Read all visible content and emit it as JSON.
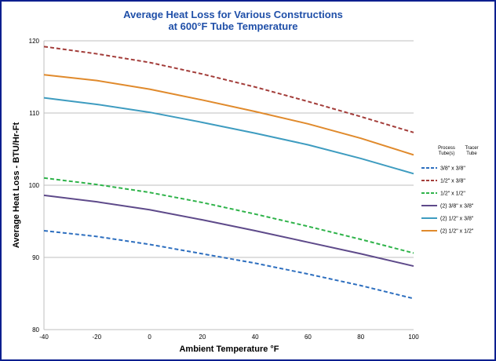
{
  "chart_data": {
    "type": "line",
    "title_line1": "Average Heat Loss for Various Constructions",
    "title_line2": "at 600°F Tube Temperature",
    "xlabel": "Ambient Temperature °F",
    "ylabel": "Average Heat Loss - BTU/Hr-Ft",
    "xlim": [
      -40,
      100
    ],
    "ylim": [
      80,
      120
    ],
    "x_ticks": [
      -40,
      -20,
      0,
      20,
      40,
      60,
      80,
      100
    ],
    "y_ticks": [
      80,
      90,
      100,
      110,
      120
    ],
    "grid": "horizontal",
    "legend_position": "right",
    "legend_header_process": "Process Tube(s)",
    "legend_header_tracer": "Tracer Tube",
    "x": [
      -40,
      -20,
      0,
      20,
      40,
      60,
      80,
      100
    ],
    "series": [
      {
        "name": "3/8\" x 3/8\"",
        "color": "#2e6fbf",
        "dash": true,
        "values": [
          93.7,
          92.9,
          91.8,
          90.5,
          89.2,
          87.7,
          86.1,
          84.3
        ]
      },
      {
        "name": "1/2\" x 3/8\"",
        "color": "#a33d3a",
        "dash": true,
        "values": [
          119.2,
          118.2,
          117.0,
          115.4,
          113.6,
          111.6,
          109.5,
          107.3
        ]
      },
      {
        "name": "1/2\" x 1/2\"",
        "color": "#2fb34a",
        "dash": true,
        "values": [
          101.0,
          100.1,
          99.0,
          97.6,
          96.0,
          94.3,
          92.5,
          90.6
        ]
      },
      {
        "name": "(2) 3/8\" x 3/8\"",
        "color": "#5e4a8a",
        "dash": false,
        "values": [
          98.6,
          97.7,
          96.6,
          95.2,
          93.7,
          92.1,
          90.5,
          88.8
        ]
      },
      {
        "name": "(2) 1/2\" x 3/8\"",
        "color": "#3e9cc0",
        "dash": false,
        "values": [
          112.1,
          111.2,
          110.1,
          108.7,
          107.2,
          105.6,
          103.7,
          101.6
        ]
      },
      {
        "name": "(2) 1/2\" x 1/2\"",
        "color": "#e08a2c",
        "dash": false,
        "values": [
          115.3,
          114.5,
          113.3,
          111.8,
          110.2,
          108.5,
          106.5,
          104.2
        ]
      }
    ]
  }
}
